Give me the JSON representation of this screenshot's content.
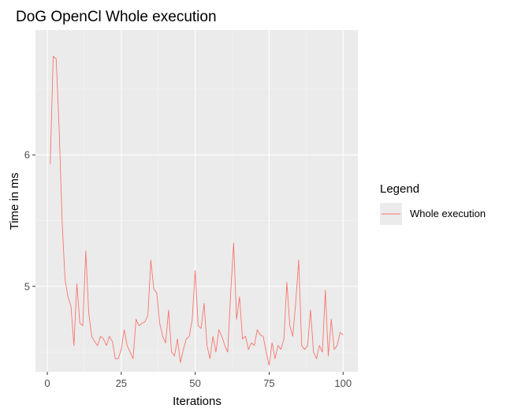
{
  "chart_data": {
    "type": "line",
    "title": "DoG OpenCl Whole execution",
    "xlabel": "Iterations",
    "ylabel": "Time in ms",
    "xlim": [
      -4,
      105
    ],
    "ylim": [
      4.35,
      6.95
    ],
    "x_ticks": [
      0,
      25,
      50,
      75,
      100
    ],
    "x_tick_labels": [
      "0",
      "25",
      "50",
      "75",
      "100"
    ],
    "y_ticks": [
      5,
      6
    ],
    "y_tick_labels": [
      "5",
      "6"
    ],
    "grid": true,
    "legend": {
      "title": "Legend",
      "placement": "right",
      "entries": [
        "Whole execution"
      ]
    },
    "series": [
      {
        "name": "Whole execution",
        "color": "#f8766d",
        "x": [
          1,
          2,
          3,
          4,
          5,
          6,
          7,
          8,
          9,
          10,
          11,
          12,
          13,
          14,
          15,
          16,
          17,
          18,
          19,
          20,
          21,
          22,
          23,
          24,
          25,
          26,
          27,
          28,
          29,
          30,
          31,
          32,
          33,
          34,
          35,
          36,
          37,
          38,
          39,
          40,
          41,
          42,
          43,
          44,
          45,
          46,
          47,
          48,
          49,
          50,
          51,
          52,
          53,
          54,
          55,
          56,
          57,
          58,
          59,
          60,
          61,
          62,
          63,
          64,
          65,
          66,
          67,
          68,
          69,
          70,
          71,
          72,
          73,
          74,
          75,
          76,
          77,
          78,
          79,
          80,
          81,
          82,
          83,
          84,
          85,
          86,
          87,
          88,
          89,
          90,
          91,
          92,
          93,
          94,
          95,
          96,
          97,
          98,
          99,
          100
        ],
        "values": [
          5.93,
          6.75,
          6.73,
          6.2,
          5.5,
          5.05,
          4.92,
          4.85,
          4.55,
          5.02,
          4.72,
          4.7,
          5.27,
          4.8,
          4.62,
          4.58,
          4.55,
          4.62,
          4.6,
          4.55,
          4.62,
          4.58,
          4.45,
          4.45,
          4.52,
          4.67,
          4.55,
          4.5,
          4.45,
          4.75,
          4.7,
          4.72,
          4.73,
          4.78,
          5.2,
          4.98,
          4.95,
          4.72,
          4.62,
          4.57,
          4.82,
          4.5,
          4.47,
          4.6,
          4.42,
          4.52,
          4.6,
          4.62,
          4.75,
          5.12,
          4.7,
          4.68,
          4.87,
          4.55,
          4.45,
          4.62,
          4.5,
          4.67,
          4.62,
          4.55,
          4.5,
          4.95,
          5.33,
          4.75,
          4.92,
          4.6,
          4.62,
          4.52,
          4.57,
          4.55,
          4.67,
          4.63,
          4.62,
          4.5,
          4.4,
          4.57,
          4.45,
          4.55,
          4.52,
          4.6,
          5.03,
          4.7,
          4.62,
          4.88,
          5.2,
          4.55,
          4.52,
          4.55,
          4.82,
          4.5,
          4.45,
          4.55,
          4.5,
          4.97,
          4.47,
          4.75,
          4.52,
          4.55,
          4.65,
          4.63
        ]
      }
    ]
  }
}
